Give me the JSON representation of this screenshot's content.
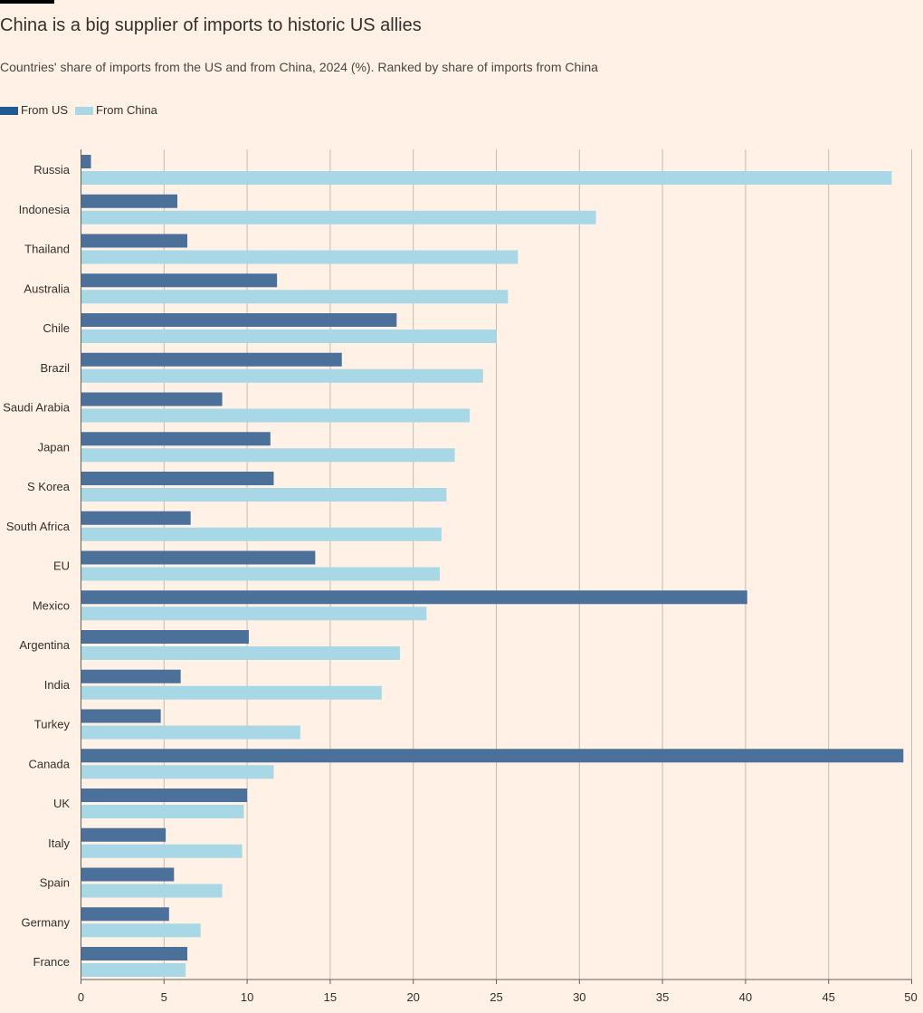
{
  "title": "China is a big supplier of imports to historic US allies",
  "subtitle": "Countries' share of imports from the US and from China, 2024 (%). Ranked by share of imports from China",
  "colors": {
    "from_us": "#4b709a",
    "from_us_legend": "#1f5a93",
    "from_china": "#a8d8e6",
    "grid": "#c5bbb3",
    "axis": "#66605c",
    "text": "#33302e"
  },
  "chart_data": {
    "type": "bar",
    "orientation": "horizontal",
    "title": "China is a big supplier of imports to historic US allies",
    "subtitle": "Countries' share of imports from the US and from China, 2024 (%). Ranked by share of imports from China",
    "xlabel": "",
    "ylabel": "",
    "xlim": [
      0,
      50
    ],
    "xticks": [
      0,
      5,
      10,
      15,
      20,
      25,
      30,
      35,
      40,
      45,
      50
    ],
    "grid": true,
    "legend_position": "top-left",
    "categories": [
      "Russia",
      "Indonesia",
      "Thailand",
      "Australia",
      "Chile",
      "Brazil",
      "Saudi Arabia",
      "Japan",
      "S Korea",
      "South Africa",
      "EU",
      "Mexico",
      "Argentina",
      "India",
      "Turkey",
      "Canada",
      "UK",
      "Italy",
      "Spain",
      "Germany",
      "France"
    ],
    "series": [
      {
        "name": "From US",
        "values": [
          0.6,
          5.8,
          6.4,
          11.8,
          19.0,
          15.7,
          8.5,
          11.4,
          11.6,
          6.6,
          14.1,
          40.1,
          10.1,
          6.0,
          4.8,
          49.5,
          10.0,
          5.1,
          5.6,
          5.3,
          6.4
        ]
      },
      {
        "name": "From China",
        "values": [
          48.8,
          31.0,
          26.3,
          25.7,
          25.0,
          24.2,
          23.4,
          22.5,
          22.0,
          21.7,
          21.6,
          20.8,
          19.2,
          18.1,
          13.2,
          11.6,
          9.8,
          9.7,
          8.5,
          7.2,
          6.3
        ]
      }
    ]
  }
}
